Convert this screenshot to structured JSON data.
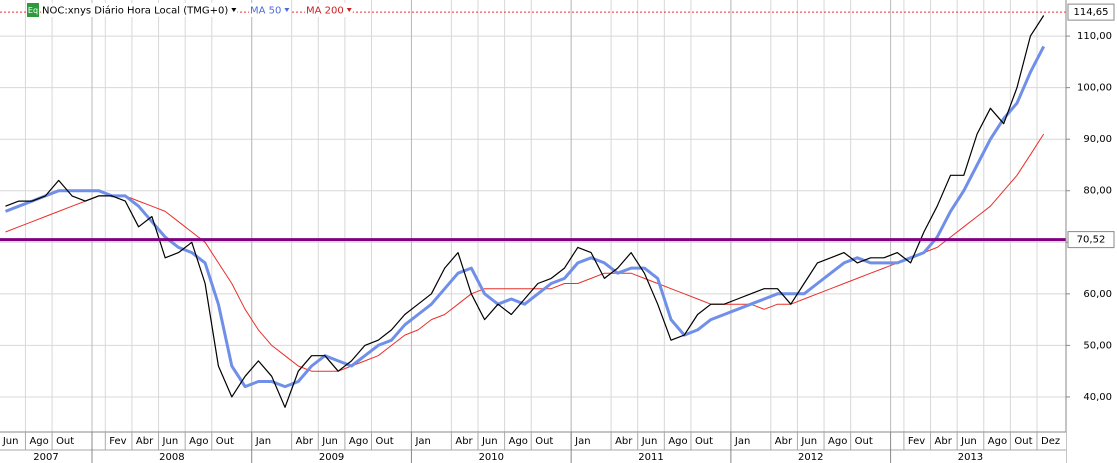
{
  "chart_data": {
    "type": "line",
    "series": [
      {
        "name": "NOC:xnys Diário Hora Local (TMG+0)",
        "color": "#000000",
        "values": [
          77,
          78,
          78,
          79,
          82,
          79,
          78,
          79,
          79,
          78,
          73,
          75,
          67,
          68,
          70,
          62,
          46,
          40,
          44,
          47,
          44,
          38,
          45,
          48,
          48,
          45,
          47,
          50,
          51,
          53,
          56,
          58,
          60,
          65,
          68,
          60,
          55,
          58,
          56,
          59,
          62,
          63,
          65,
          69,
          68,
          63,
          65,
          68,
          64,
          58,
          51,
          52,
          56,
          58,
          58,
          59,
          60,
          61,
          61,
          58,
          62,
          66,
          67,
          68,
          66,
          67,
          67,
          68,
          66,
          72,
          77,
          83,
          83,
          91,
          96,
          93,
          100,
          110,
          114
        ]
      },
      {
        "name": "MA 50",
        "color": "#6f8fe8",
        "values": [
          76,
          77,
          78,
          79,
          80,
          80,
          80,
          80,
          79,
          79,
          77,
          74,
          71,
          69,
          68,
          66,
          58,
          46,
          42,
          43,
          43,
          42,
          43,
          46,
          48,
          47,
          46,
          48,
          50,
          51,
          54,
          56,
          58,
          61,
          64,
          65,
          60,
          58,
          59,
          58,
          60,
          62,
          63,
          66,
          67,
          66,
          64,
          65,
          65,
          63,
          55,
          52,
          53,
          55,
          56,
          57,
          58,
          59,
          60,
          60,
          60,
          62,
          64,
          66,
          67,
          66,
          66,
          66,
          67,
          68,
          71,
          76,
          80,
          85,
          90,
          94,
          97,
          103,
          108
        ]
      },
      {
        "name": "MA 200",
        "color": "#e8302a",
        "values": [
          72,
          73,
          74,
          75,
          76,
          77,
          78,
          79,
          79,
          79,
          78,
          77,
          76,
          74,
          72,
          70,
          66,
          62,
          57,
          53,
          50,
          48,
          46,
          45,
          45,
          45,
          46,
          47,
          48,
          50,
          52,
          53,
          55,
          56,
          58,
          60,
          61,
          61,
          61,
          61,
          61,
          61,
          62,
          62,
          63,
          64,
          64,
          64,
          63,
          62,
          61,
          60,
          59,
          58,
          58,
          58,
          58,
          57,
          58,
          58,
          59,
          60,
          61,
          62,
          63,
          64,
          65,
          66,
          67,
          68,
          69,
          71,
          73,
          75,
          77,
          80,
          83,
          87,
          91
        ]
      }
    ],
    "x": [
      "2007-06",
      "2007-07",
      "2007-08",
      "2007-09",
      "2007-10",
      "2007-11",
      "2007-12",
      "2008-01",
      "2008-02",
      "2008-03",
      "2008-04",
      "2008-05",
      "2008-06",
      "2008-07",
      "2008-08",
      "2008-09",
      "2008-10",
      "2008-11",
      "2008-12",
      "2009-01",
      "2009-02",
      "2009-03",
      "2009-04",
      "2009-05",
      "2009-06",
      "2009-07",
      "2009-08",
      "2009-09",
      "2009-10",
      "2009-11",
      "2009-12",
      "2010-01",
      "2010-02",
      "2010-03",
      "2010-04",
      "2010-05",
      "2010-06",
      "2010-07",
      "2010-08",
      "2010-09",
      "2010-10",
      "2010-11",
      "2010-12",
      "2011-01",
      "2011-02",
      "2011-03",
      "2011-04",
      "2011-05",
      "2011-06",
      "2011-07",
      "2011-08",
      "2011-09",
      "2011-10",
      "2011-11",
      "2011-12",
      "2012-01",
      "2012-02",
      "2012-03",
      "2012-04",
      "2012-05",
      "2012-06",
      "2012-07",
      "2012-08",
      "2012-09",
      "2012-10",
      "2012-11",
      "2012-12",
      "2013-01",
      "2013-02",
      "2013-03",
      "2013-04",
      "2013-05",
      "2013-06",
      "2013-07",
      "2013-08",
      "2013-09",
      "2013-10",
      "2013-11",
      "2013-12"
    ],
    "xticks": [
      {
        "value": "2007-06",
        "label": "Jun"
      },
      {
        "value": "2007-08",
        "label": "Ago"
      },
      {
        "value": "2007-10",
        "label": "Out"
      },
      {
        "value": "2008-02",
        "label": "Fev"
      },
      {
        "value": "2008-04",
        "label": "Abr"
      },
      {
        "value": "2008-06",
        "label": "Jun"
      },
      {
        "value": "2008-08",
        "label": "Ago"
      },
      {
        "value": "2008-10",
        "label": "Out"
      },
      {
        "value": "2009-01",
        "label": "Jan"
      },
      {
        "value": "2009-04",
        "label": "Abr"
      },
      {
        "value": "2009-06",
        "label": "Jun"
      },
      {
        "value": "2009-08",
        "label": "Ago"
      },
      {
        "value": "2009-10",
        "label": "Out"
      },
      {
        "value": "2010-01",
        "label": "Jan"
      },
      {
        "value": "2010-04",
        "label": "Abr"
      },
      {
        "value": "2010-06",
        "label": "Jun"
      },
      {
        "value": "2010-08",
        "label": "Ago"
      },
      {
        "value": "2010-10",
        "label": "Out"
      },
      {
        "value": "2011-01",
        "label": "Jan"
      },
      {
        "value": "2011-04",
        "label": "Abr"
      },
      {
        "value": "2011-06",
        "label": "Jun"
      },
      {
        "value": "2011-08",
        "label": "Ago"
      },
      {
        "value": "2011-10",
        "label": "Out"
      },
      {
        "value": "2012-01",
        "label": "Jan"
      },
      {
        "value": "2012-04",
        "label": "Abr"
      },
      {
        "value": "2012-06",
        "label": "Jun"
      },
      {
        "value": "2012-08",
        "label": "Ago"
      },
      {
        "value": "2012-10",
        "label": "Out"
      },
      {
        "value": "2013-02",
        "label": "Fev"
      },
      {
        "value": "2013-04",
        "label": "Abr"
      },
      {
        "value": "2013-06",
        "label": "Jun"
      },
      {
        "value": "2013-08",
        "label": "Ago"
      },
      {
        "value": "2013-10",
        "label": "Out"
      },
      {
        "value": "2013-12",
        "label": "Dez"
      }
    ],
    "years": [
      "2007",
      "2008",
      "2009",
      "2010",
      "2011",
      "2012",
      "2013"
    ],
    "ylim": [
      33.2,
      117
    ],
    "yticks": [
      {
        "value": 40,
        "label": "40,00"
      },
      {
        "value": 50,
        "label": "50,00"
      },
      {
        "value": 60,
        "label": "60,00"
      },
      {
        "value": 70,
        "label": "70,00"
      },
      {
        "value": 80,
        "label": "80,00"
      },
      {
        "value": 90,
        "label": "90,00"
      },
      {
        "value": 100,
        "label": "100,00"
      },
      {
        "value": 110,
        "label": "110,00"
      }
    ],
    "grid": true,
    "badge": "Eq",
    "price_marker": {
      "value": 114.65,
      "label": "114,65"
    },
    "level_line": {
      "value": 70.52,
      "label": "70,52",
      "color": "#800080"
    }
  }
}
